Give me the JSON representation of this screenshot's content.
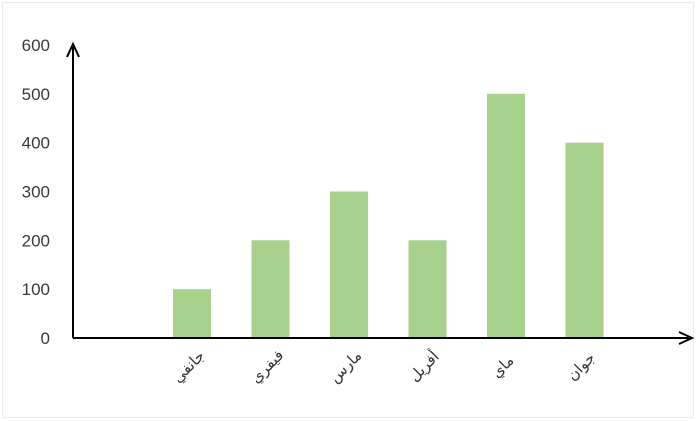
{
  "chart_data": {
    "type": "bar",
    "categories": [
      "جانفي",
      "فيفري",
      "مارس",
      "أفريل",
      "ماي",
      "جوان"
    ],
    "values": [
      100,
      200,
      300,
      200,
      500,
      400
    ],
    "title": "",
    "xlabel": "",
    "ylabel": "",
    "ylim": [
      0,
      600
    ],
    "yticks": [
      "0",
      "100",
      "200",
      "300",
      "400",
      "500",
      "600"
    ],
    "grid": false,
    "legend": "none",
    "bar_color": "#a9d18e",
    "axis_color": "#000000"
  }
}
